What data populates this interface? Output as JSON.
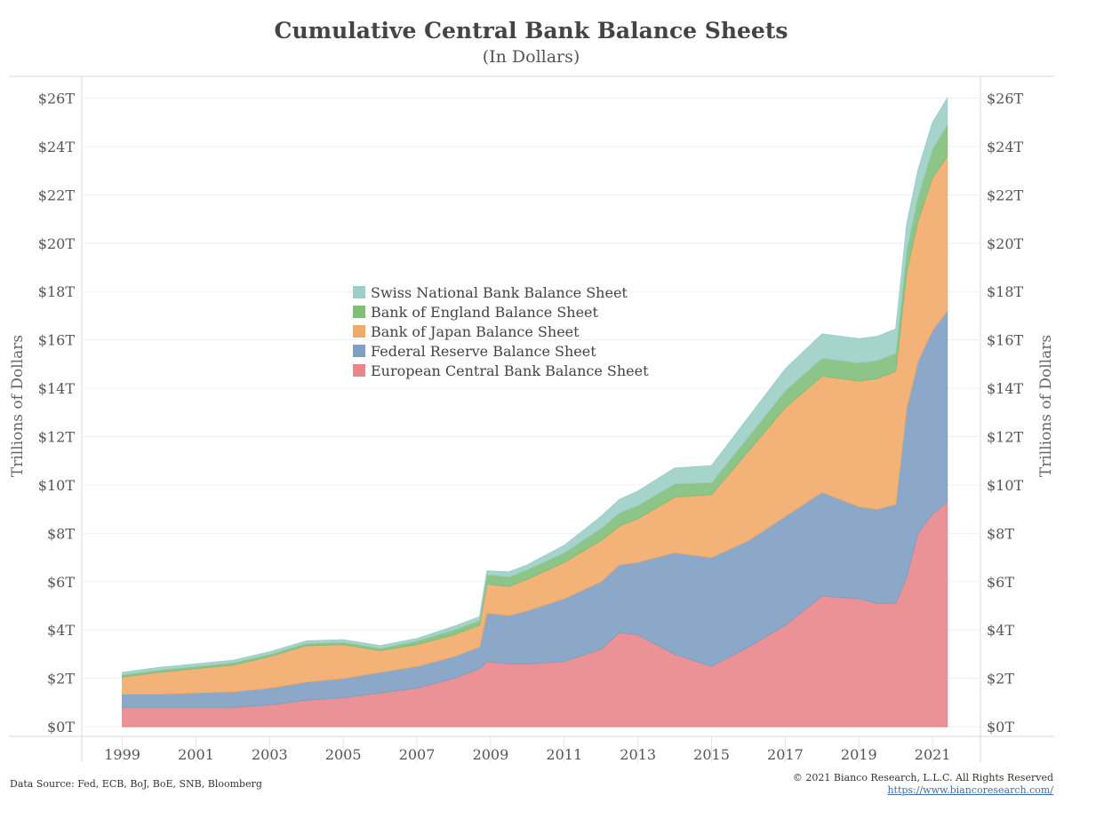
{
  "header": {
    "title": "Cumulative Central Bank Balance Sheets",
    "subtitle": "(In Dollars)"
  },
  "footer": {
    "source": "Data Source: Fed, ECB, BoJ, BoE, SNB, Bloomberg",
    "copyright": "© 2021 Bianco Research, L.L.C. All Rights Reserved",
    "url": "https://www.biancoresearch.com/"
  },
  "chart_data": {
    "type": "area",
    "stacked": true,
    "title": "Cumulative Central Bank Balance Sheets",
    "subtitle": "(In Dollars)",
    "ylabel": "Trillions of Dollars",
    "ylabel_right": "Trillions of Dollars",
    "xlabel": "",
    "xlim": [
      1997.9,
      2022.3
    ],
    "ylim": [
      -0.4,
      26.9
    ],
    "x_ticks": [
      "1999",
      "2001",
      "2003",
      "2005",
      "2007",
      "2009",
      "2011",
      "2013",
      "2015",
      "2017",
      "2019",
      "2021"
    ],
    "y_ticks": [
      "$0T",
      "$2T",
      "$4T",
      "$6T",
      "$8T",
      "$10T",
      "$12T",
      "$14T",
      "$16T",
      "$18T",
      "$20T",
      "$22T",
      "$24T",
      "$26T"
    ],
    "y_tick_values": [
      0,
      2,
      4,
      6,
      8,
      10,
      12,
      14,
      16,
      18,
      20,
      22,
      24,
      26
    ],
    "grid": true,
    "legend_position": "center-left",
    "legend_order": [
      "Swiss National Bank Balance Sheet",
      "Bank of England Balance Sheet",
      "Bank of Japan Balance Sheet",
      "Federal Reserve Balance Sheet",
      "European Central Bank Balance Sheet"
    ],
    "x": [
      1999.0,
      2000.0,
      2001.0,
      2002.0,
      2003.0,
      2004.0,
      2005.0,
      2006.0,
      2007.0,
      2008.0,
      2008.7,
      2008.9,
      2009.5,
      2010.0,
      2011.0,
      2012.0,
      2012.5,
      2013.0,
      2014.0,
      2015.0,
      2016.0,
      2017.0,
      2018.0,
      2019.0,
      2019.5,
      2020.0,
      2020.3,
      2020.6,
      2021.0,
      2021.4
    ],
    "series": [
      {
        "name": "European Central Bank Balance Sheet",
        "color": "#e8868a",
        "values": [
          0.8,
          0.8,
          0.8,
          0.8,
          0.9,
          1.1,
          1.2,
          1.4,
          1.6,
          2.0,
          2.4,
          2.7,
          2.6,
          2.6,
          2.7,
          3.2,
          3.9,
          3.8,
          3.0,
          2.5,
          3.3,
          4.2,
          5.4,
          5.3,
          5.1,
          5.1,
          6.2,
          8.0,
          8.8,
          9.3
        ]
      },
      {
        "name": "Federal Reserve Balance Sheet",
        "color": "#7f9fc3",
        "values": [
          0.55,
          0.55,
          0.6,
          0.65,
          0.7,
          0.75,
          0.8,
          0.85,
          0.9,
          0.9,
          0.9,
          2.0,
          2.0,
          2.2,
          2.6,
          2.8,
          2.8,
          3.0,
          4.2,
          4.5,
          4.4,
          4.5,
          4.3,
          3.8,
          3.9,
          4.1,
          7.0,
          7.1,
          7.6,
          7.9
        ]
      },
      {
        "name": "Bank of Japan Balance Sheet",
        "color": "#f2aa69",
        "values": [
          0.7,
          0.9,
          1.0,
          1.1,
          1.3,
          1.5,
          1.4,
          0.9,
          0.9,
          0.9,
          0.9,
          1.2,
          1.2,
          1.3,
          1.5,
          1.7,
          1.6,
          1.8,
          2.3,
          2.6,
          3.7,
          4.5,
          4.8,
          5.2,
          5.4,
          5.5,
          5.6,
          5.8,
          6.3,
          6.4
        ]
      },
      {
        "name": "Bank of England Balance Sheet",
        "color": "#7fbf7a",
        "values": [
          0.1,
          0.1,
          0.1,
          0.1,
          0.1,
          0.1,
          0.1,
          0.1,
          0.15,
          0.2,
          0.2,
          0.4,
          0.4,
          0.4,
          0.4,
          0.5,
          0.55,
          0.55,
          0.55,
          0.5,
          0.6,
          0.7,
          0.75,
          0.75,
          0.75,
          0.75,
          0.95,
          1.0,
          1.2,
          1.3
        ]
      },
      {
        "name": "Swiss National Bank Balance Sheet",
        "color": "#9ccfc8",
        "values": [
          0.1,
          0.1,
          0.1,
          0.1,
          0.1,
          0.1,
          0.1,
          0.1,
          0.1,
          0.15,
          0.15,
          0.15,
          0.2,
          0.2,
          0.3,
          0.5,
          0.55,
          0.6,
          0.65,
          0.7,
          0.8,
          0.9,
          1.0,
          1.0,
          1.0,
          1.0,
          1.05,
          1.1,
          1.1,
          1.1
        ]
      }
    ]
  }
}
